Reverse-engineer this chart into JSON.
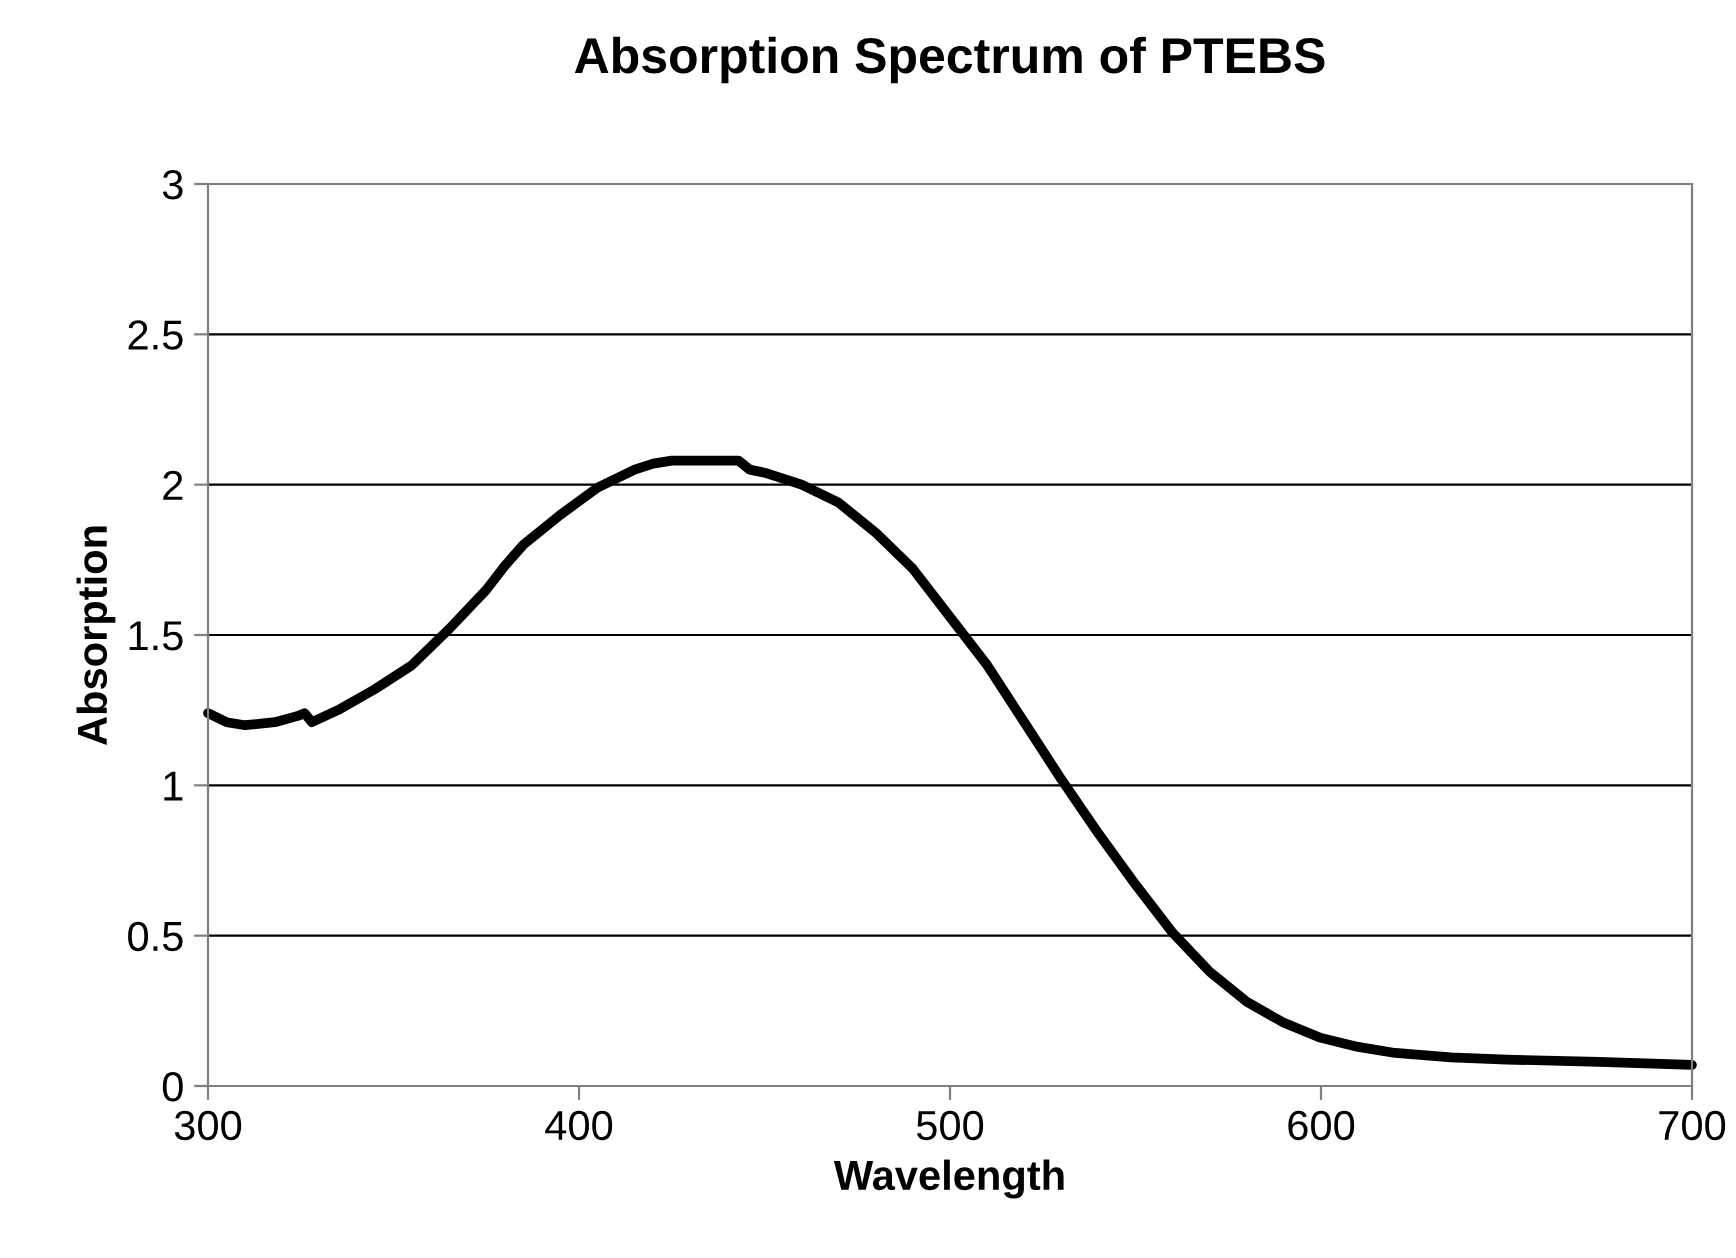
{
  "chart_data": {
    "type": "line",
    "title": "Absorption Spectrum of PTEBS",
    "xlabel": "Wavelength",
    "ylabel": "Absorption",
    "x": [
      300,
      305,
      310,
      318,
      324,
      326,
      328,
      335,
      345,
      355,
      365,
      375,
      380,
      385,
      395,
      405,
      415,
      420,
      425,
      432,
      440,
      443,
      446,
      450,
      460,
      470,
      480,
      490,
      500,
      510,
      520,
      530,
      540,
      550,
      560,
      570,
      580,
      590,
      600,
      610,
      620,
      635,
      650,
      675,
      700
    ],
    "series": [
      {
        "color": "#000000",
        "values": [
          1.24,
          1.21,
          1.2,
          1.21,
          1.23,
          1.24,
          1.21,
          1.25,
          1.32,
          1.4,
          1.52,
          1.65,
          1.73,
          1.8,
          1.9,
          1.99,
          2.05,
          2.07,
          2.08,
          2.08,
          2.08,
          2.08,
          2.05,
          2.04,
          2.0,
          1.94,
          1.84,
          1.72,
          1.56,
          1.4,
          1.21,
          1.02,
          0.84,
          0.67,
          0.51,
          0.38,
          0.28,
          0.21,
          0.16,
          0.13,
          0.11,
          0.095,
          0.088,
          0.08,
          0.07
        ]
      }
    ],
    "xlim": [
      300,
      700
    ],
    "xticks": [
      300,
      400,
      500,
      600,
      700
    ],
    "ylim": [
      0,
      3
    ],
    "yticks": [
      0,
      0.5,
      1,
      1.5,
      2,
      2.5,
      3
    ],
    "grid": "y"
  }
}
